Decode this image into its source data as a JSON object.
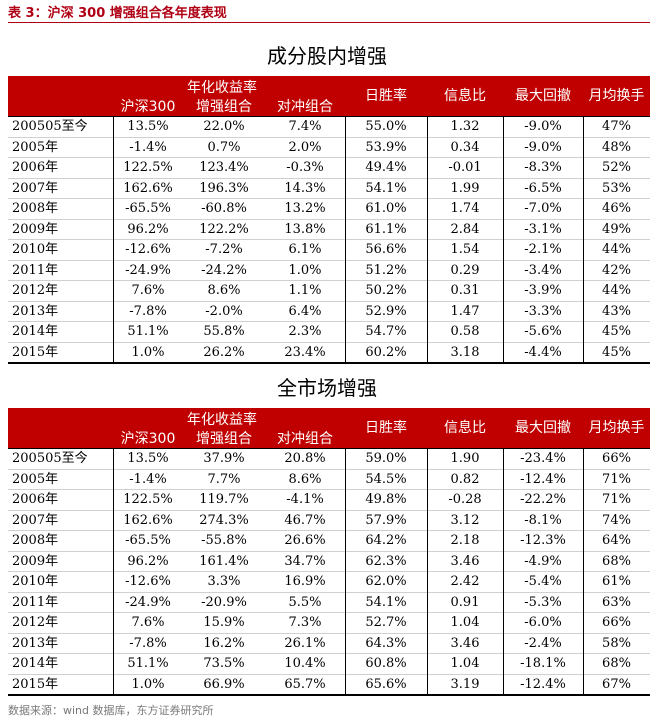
{
  "caption": "表 3：沪深 300 增强组合各年度表现",
  "source": "数据来源：wind 数据库，东方证券研究所",
  "columns": {
    "group_header": "年化收益率",
    "csi300": "沪深300",
    "enhanced": "增强组合",
    "hedged": "对冲组合",
    "win_rate": "日胜率",
    "info_ratio": "信息比",
    "max_drawdown": "最大回撤",
    "turnover": "月均换手"
  },
  "tables": [
    {
      "title": "成分股内增强",
      "rows": [
        [
          "200505至今",
          "13.5%",
          "22.0%",
          "7.4%",
          "55.0%",
          "1.32",
          "-9.0%",
          "47%"
        ],
        [
          "2005年",
          "-1.4%",
          "0.7%",
          "2.0%",
          "53.9%",
          "0.34",
          "-9.0%",
          "48%"
        ],
        [
          "2006年",
          "122.5%",
          "123.4%",
          "-0.3%",
          "49.4%",
          "-0.01",
          "-8.3%",
          "52%"
        ],
        [
          "2007年",
          "162.6%",
          "196.3%",
          "14.3%",
          "54.1%",
          "1.99",
          "-6.5%",
          "53%"
        ],
        [
          "2008年",
          "-65.5%",
          "-60.8%",
          "13.2%",
          "61.0%",
          "1.74",
          "-7.0%",
          "46%"
        ],
        [
          "2009年",
          "96.2%",
          "122.2%",
          "13.8%",
          "61.1%",
          "2.84",
          "-3.1%",
          "49%"
        ],
        [
          "2010年",
          "-12.6%",
          "-7.2%",
          "6.1%",
          "56.6%",
          "1.54",
          "-2.1%",
          "44%"
        ],
        [
          "2011年",
          "-24.9%",
          "-24.2%",
          "1.0%",
          "51.2%",
          "0.29",
          "-3.4%",
          "42%"
        ],
        [
          "2012年",
          "7.6%",
          "8.6%",
          "1.1%",
          "50.2%",
          "0.31",
          "-3.9%",
          "44%"
        ],
        [
          "2013年",
          "-7.8%",
          "-2.0%",
          "6.4%",
          "52.9%",
          "1.47",
          "-3.3%",
          "43%"
        ],
        [
          "2014年",
          "51.1%",
          "55.8%",
          "2.3%",
          "54.7%",
          "0.58",
          "-5.6%",
          "45%"
        ],
        [
          "2015年",
          "1.0%",
          "26.2%",
          "23.4%",
          "60.2%",
          "3.18",
          "-4.4%",
          "45%"
        ]
      ]
    },
    {
      "title": "全市场增强",
      "rows": [
        [
          "200505至今",
          "13.5%",
          "37.9%",
          "20.8%",
          "59.0%",
          "1.90",
          "-23.4%",
          "66%"
        ],
        [
          "2005年",
          "-1.4%",
          "7.7%",
          "8.6%",
          "54.5%",
          "0.82",
          "-12.4%",
          "71%"
        ],
        [
          "2006年",
          "122.5%",
          "119.7%",
          "-4.1%",
          "49.8%",
          "-0.28",
          "-22.2%",
          "71%"
        ],
        [
          "2007年",
          "162.6%",
          "274.3%",
          "46.7%",
          "57.9%",
          "3.12",
          "-8.1%",
          "74%"
        ],
        [
          "2008年",
          "-65.5%",
          "-55.8%",
          "26.6%",
          "64.2%",
          "2.18",
          "-12.3%",
          "64%"
        ],
        [
          "2009年",
          "96.2%",
          "161.4%",
          "34.7%",
          "62.3%",
          "3.46",
          "-4.9%",
          "68%"
        ],
        [
          "2010年",
          "-12.6%",
          "3.3%",
          "16.9%",
          "62.0%",
          "2.42",
          "-5.4%",
          "61%"
        ],
        [
          "2011年",
          "-24.9%",
          "-20.9%",
          "5.5%",
          "54.1%",
          "0.91",
          "-5.3%",
          "63%"
        ],
        [
          "2012年",
          "7.6%",
          "15.9%",
          "7.3%",
          "52.7%",
          "1.04",
          "-6.0%",
          "66%"
        ],
        [
          "2013年",
          "-7.8%",
          "16.2%",
          "26.1%",
          "64.3%",
          "3.46",
          "-2.4%",
          "58%"
        ],
        [
          "2014年",
          "51.1%",
          "73.5%",
          "10.4%",
          "60.8%",
          "1.04",
          "-18.1%",
          "68%"
        ],
        [
          "2015年",
          "1.0%",
          "66.9%",
          "65.7%",
          "65.6%",
          "3.19",
          "-12.4%",
          "67%"
        ]
      ]
    }
  ]
}
